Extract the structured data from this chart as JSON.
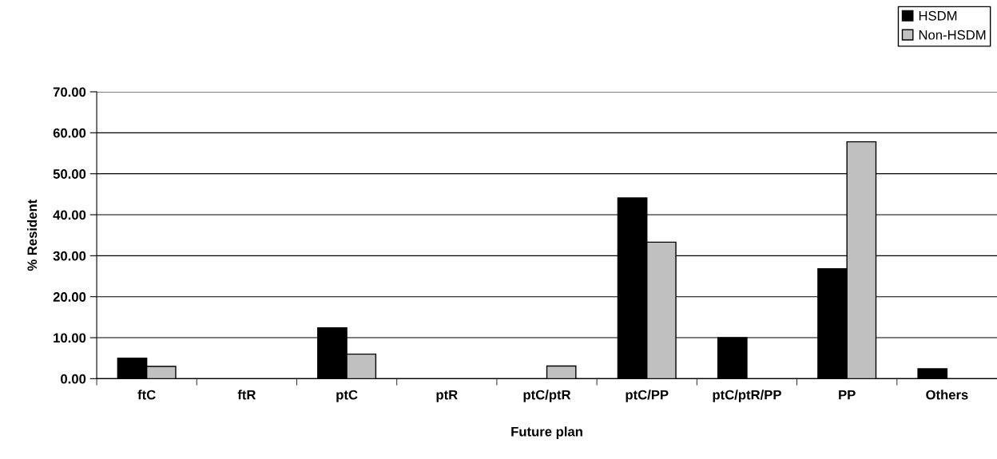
{
  "chart_data": {
    "type": "bar",
    "xlabel": "Future plan",
    "ylabel": "% Resident",
    "categories": [
      "ftC",
      "ftR",
      "ptC",
      "ptR",
      "ptC/ptR",
      "ptC/PP",
      "ptC/ptR/PP",
      "PP",
      "Others"
    ],
    "series": [
      {
        "name": "HSDM",
        "color": "#000000",
        "values": [
          5.0,
          null,
          12.4,
          null,
          null,
          44.1,
          10.0,
          26.8,
          2.4
        ]
      },
      {
        "name": "Non-HSDM",
        "color": "#c0c0c0",
        "values": [
          3.0,
          null,
          6.0,
          null,
          3.1,
          33.3,
          null,
          57.8,
          null
        ]
      }
    ],
    "ylim": [
      0,
      70
    ],
    "yticks": [
      {
        "value": 0,
        "label": "0.00"
      },
      {
        "value": 10,
        "label": "10.00"
      },
      {
        "value": 20,
        "label": "20.00"
      },
      {
        "value": 30,
        "label": "30.00"
      },
      {
        "value": 40,
        "label": "40.00"
      },
      {
        "value": 50,
        "label": "50.00"
      },
      {
        "value": 60,
        "label": "60.00"
      },
      {
        "value": 70,
        "label": "70.00"
      }
    ],
    "grid": "y",
    "legend": "top right"
  }
}
